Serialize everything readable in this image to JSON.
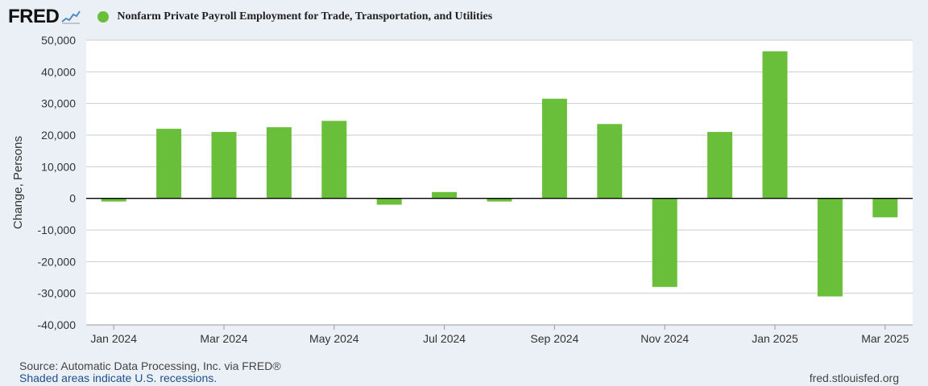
{
  "header": {
    "logo": "FRED",
    "title": "Nonfarm Private Payroll Employment for Trade, Transportation, and Utilities"
  },
  "colors": {
    "bar": "#6abf3a",
    "logo_line": "#4f89c8",
    "background": "#eaf0f6",
    "plot": "#ffffff",
    "grid": "#cccccc"
  },
  "chart_data": {
    "type": "bar",
    "categories": [
      "Jan 2024",
      "Feb 2024",
      "Mar 2024",
      "Apr 2024",
      "May 2024",
      "Jun 2024",
      "Jul 2024",
      "Aug 2024",
      "Sep 2024",
      "Oct 2024",
      "Nov 2024",
      "Dec 2024",
      "Jan 2025",
      "Feb 2025",
      "Mar 2025"
    ],
    "values": [
      -1000,
      22000,
      21000,
      22500,
      24500,
      -2000,
      2000,
      -1000,
      31500,
      23500,
      -28000,
      21000,
      46500,
      -31000,
      -6000
    ],
    "ylabel": "Change, Persons",
    "ylim": [
      -40000,
      50000
    ],
    "yticks": [
      50000,
      40000,
      30000,
      20000,
      10000,
      0,
      -10000,
      -20000,
      -30000,
      -40000
    ],
    "ytick_labels": [
      "50,000",
      "40,000",
      "30,000",
      "20,000",
      "10,000",
      "0",
      "-10,000",
      "-20,000",
      "-30,000",
      "-40,000"
    ],
    "xtick_labels": [
      "Jan 2024",
      "Mar 2024",
      "May 2024",
      "Jul 2024",
      "Sep 2024",
      "Nov 2024",
      "Jan 2025",
      "Mar 2025"
    ],
    "xtick_indices": [
      0,
      2,
      4,
      6,
      8,
      10,
      12,
      14
    ],
    "grid": true,
    "legend": "top-left"
  },
  "footer": {
    "source": "Source: Automatic Data Processing, Inc. via FRED®",
    "shaded": "Shaded areas indicate U.S. recessions.",
    "site": "fred.stlouisfed.org"
  }
}
